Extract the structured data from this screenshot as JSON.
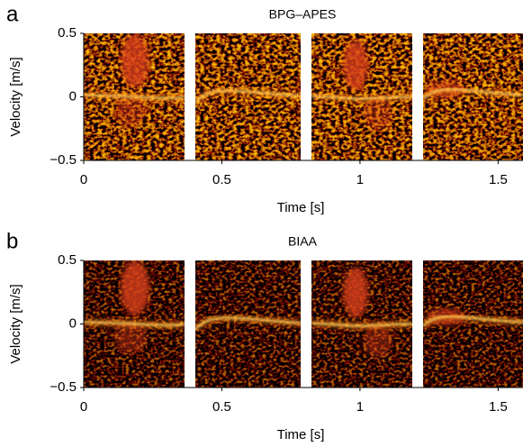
{
  "chart_data": [
    {
      "type": "spectrogram",
      "panel_label": "a",
      "title": "BPG–APES",
      "xlabel": "Time [s]",
      "ylabel": "Velocity [m/s]",
      "xlim": [
        0,
        1.59
      ],
      "ylim": [
        -0.5,
        0.5
      ],
      "xticks": [
        0,
        0.5,
        1,
        1.5
      ],
      "yticks": [
        0.5,
        0,
        {
          "value": -0.5,
          "label": "−0.5"
        }
      ]
    },
    {
      "type": "spectrogram",
      "panel_label": "b",
      "title": "BIAA",
      "xlabel": "Time [s]",
      "ylabel": "Velocity [m/s]",
      "xlim": [
        0,
        1.59
      ],
      "ylim": [
        -0.5,
        0.5
      ],
      "xticks": [
        0,
        0.5,
        1,
        1.5
      ],
      "yticks": [
        0.5,
        0,
        {
          "value": -0.5,
          "label": "−0.5"
        }
      ]
    }
  ]
}
